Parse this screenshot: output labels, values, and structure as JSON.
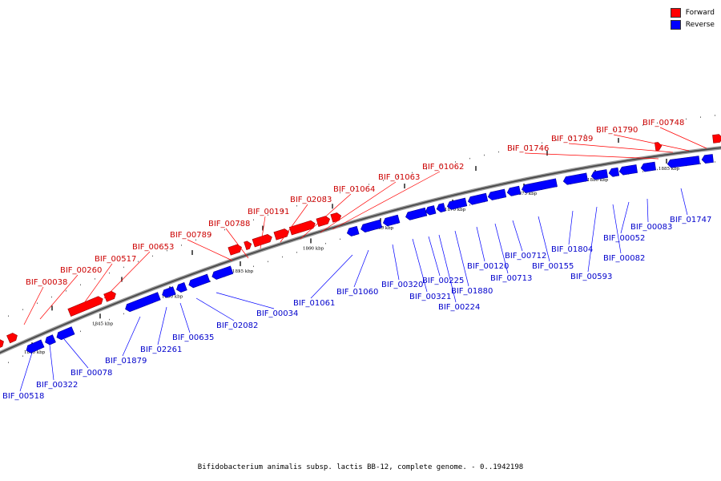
{
  "legend": {
    "forward_label": "Forward",
    "reverse_label": "Reverse",
    "forward_color": "#ff0000",
    "reverse_color": "#0000ff"
  },
  "caption": "Bifidobacterium animalis subsp. lactis BB-12, complete genome. - 0..1942198",
  "ticks": [
    "1840 kbp",
    "1845 kbp",
    "1850 kbp",
    "1855 kbp",
    "1860 kbp",
    "1865 kbp",
    "1870 kbp",
    "1875 kbp",
    "1880 kbp",
    "1885 kbp"
  ],
  "forward_genes": [
    "BIF_00038",
    "BIF_00260",
    "BIF_00517",
    "BIF_00653",
    "BIF_00789",
    "BIF_00788",
    "BIF_00191",
    "BIF_02083",
    "BIF_01064",
    "BIF_01063",
    "BIF_01062",
    "BIF_01746",
    "BIF_01789",
    "BIF_01790",
    "BIF_00748"
  ],
  "reverse_genes": [
    "BIF_00518",
    "BIF_00322",
    "BIF_00078",
    "BIF_01879",
    "BIF_02261",
    "BIF_00635",
    "BIF_02082",
    "BIF_00034",
    "BIF_01061",
    "BIF_01060",
    "BIF_00320",
    "BIF_00321",
    "BIF_00225",
    "BIF_00224",
    "BIF_01880",
    "BIF_00120",
    "BIF_00713",
    "BIF_00712",
    "BIF_00155",
    "BIF_01804",
    "BIF_00593",
    "BIF_00082",
    "BIF_00052",
    "BIF_00083",
    "BIF_01747"
  ]
}
